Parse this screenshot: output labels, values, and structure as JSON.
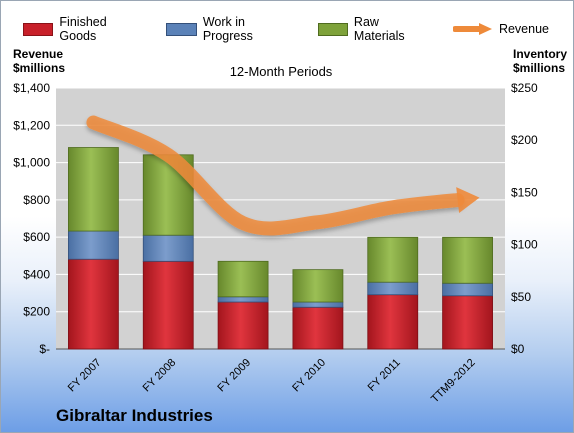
{
  "company": "Gibraltar Industries",
  "axis_left_title": [
    "Revenue",
    "$millions"
  ],
  "axis_right_title": [
    "Inventory",
    "$millions"
  ],
  "colors": {
    "finished_goods": "#c8202a",
    "work_in_progress": "#5b82b8",
    "raw_materials": "#7ea23a",
    "revenue": "#ee8a3a",
    "plot_bg": "#d2d2d2"
  },
  "chart_data": {
    "type": "bar",
    "stacked": true,
    "title": "12-Month Periods",
    "categories": [
      "FY 2007",
      "FY 2008",
      "FY 2009",
      "FY 2010",
      "FY 2011",
      "TTM9-2012"
    ],
    "series": [
      {
        "name": "Finished Goods",
        "axis": "right",
        "values": [
          86,
          84,
          45,
          40,
          52,
          51
        ]
      },
      {
        "name": "Work in Progress",
        "axis": "right",
        "values": [
          27,
          25,
          5,
          5,
          12,
          12
        ]
      },
      {
        "name": "Raw Materials",
        "axis": "right",
        "values": [
          80,
          77,
          34,
          31,
          43,
          44
        ]
      },
      {
        "name": "Revenue",
        "type": "line",
        "axis": "left",
        "values": [
          1215,
          1040,
          675,
          680,
          760,
          805
        ]
      }
    ],
    "y_left": {
      "ylim": [
        0,
        1400
      ],
      "ticks": [
        0,
        200,
        400,
        600,
        800,
        1000,
        1200,
        1400
      ],
      "tick_labels": [
        "$-",
        "$200",
        "$400",
        "$600",
        "$800",
        "$1,000",
        "$1,200",
        "$1,400"
      ]
    },
    "y_right": {
      "ylim": [
        0,
        250
      ],
      "ticks": [
        0,
        50,
        100,
        150,
        200,
        250
      ],
      "tick_labels": [
        "$0",
        "$50",
        "$100",
        "$150",
        "$200",
        "$250"
      ]
    },
    "legend": "top",
    "grid": true
  }
}
